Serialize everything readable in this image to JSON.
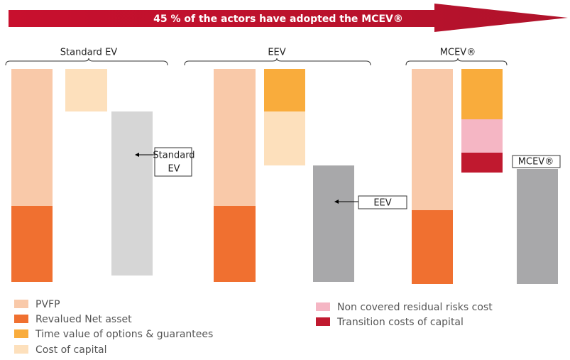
{
  "banner": "45 % of the actors have adopted the MCEV®",
  "groups": [
    {
      "label": "Standard EV"
    },
    {
      "label": "EEV"
    },
    {
      "label": "MCEV®"
    }
  ],
  "result_labels": [
    [
      "Standard",
      "EV"
    ],
    [
      "EEV"
    ],
    [
      "MCEV®"
    ]
  ],
  "legend": [
    {
      "label": "PVFP",
      "color": "#f9c9a9"
    },
    {
      "label": "Revalued Net asset",
      "color": "#f07030"
    },
    {
      "label": "Time value of options & guarantees",
      "color": "#f9ac3c"
    },
    {
      "label": "Cost of capital",
      "color": "#fde0bc"
    },
    {
      "label": "Non covered residual risks cost",
      "color": "#f5b6c4"
    },
    {
      "label": "Transition costs of capital",
      "color": "#c0192f"
    }
  ]
}
